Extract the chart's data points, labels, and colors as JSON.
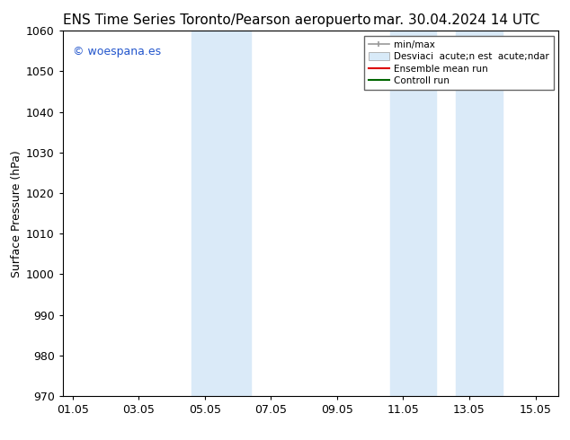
{
  "title_left": "ENS Time Series Toronto/Pearson aeropuerto",
  "title_right": "mar. 30.04.2024 14 UTC",
  "ylabel": "Surface Pressure (hPa)",
  "watermark": "© woespana.es",
  "watermark_color": "#2255cc",
  "ylim": [
    970,
    1060
  ],
  "yticks": [
    970,
    980,
    990,
    1000,
    1010,
    1020,
    1030,
    1040,
    1050,
    1060
  ],
  "xtick_labels": [
    "01.05",
    "03.05",
    "05.05",
    "07.05",
    "09.05",
    "11.05",
    "13.05",
    "15.05"
  ],
  "xtick_positions": [
    0,
    2,
    4,
    6,
    8,
    10,
    12,
    14
  ],
  "xlim": [
    -0.3,
    14.7
  ],
  "bg_color": "#ffffff",
  "plot_bg_color": "#ffffff",
  "shaded_regions": [
    {
      "x_start": 3.6,
      "x_end": 5.4,
      "color": "#daeaf8"
    },
    {
      "x_start": 9.6,
      "x_end": 11.0,
      "color": "#daeaf8"
    },
    {
      "x_start": 11.6,
      "x_end": 13.0,
      "color": "#daeaf8"
    }
  ],
  "title_fontsize": 11,
  "tick_fontsize": 9,
  "ylabel_fontsize": 9
}
